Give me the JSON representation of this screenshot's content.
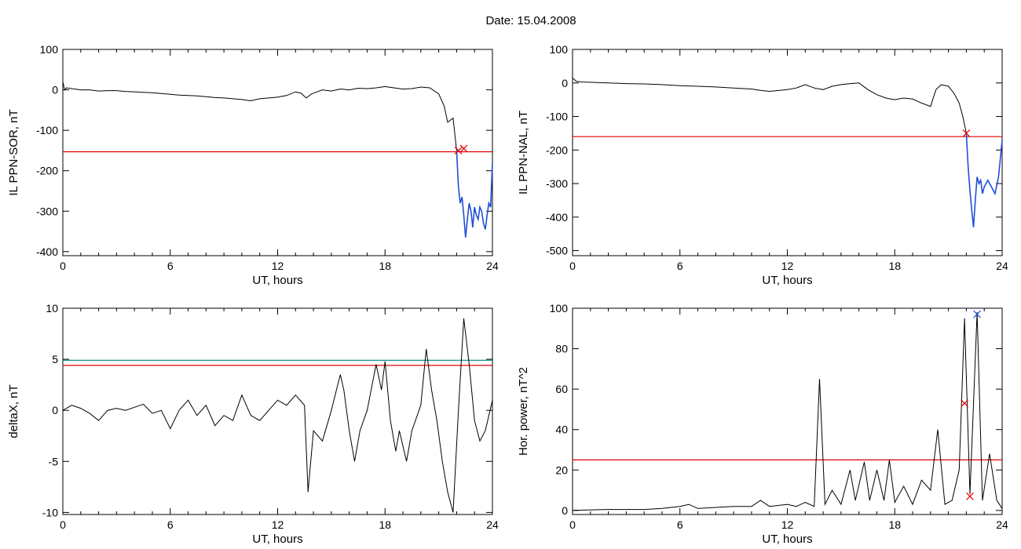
{
  "header": {
    "title": "Date:  15.04.2008"
  },
  "chart_data": [
    {
      "id": "p1",
      "type": "line",
      "xlabel": "UT, hours",
      "ylabel": "IL PPN-SOR, nT",
      "xlim": [
        0,
        24
      ],
      "ylim": [
        -410,
        100
      ],
      "xticks": [
        0,
        6,
        12,
        18,
        24
      ],
      "yticks": [
        100,
        0,
        -100,
        -200,
        -300,
        -400
      ],
      "threshold": {
        "value": -153,
        "color": "#e00000"
      },
      "series": [
        {
          "color": "#000000",
          "points": [
            [
              0,
              20
            ],
            [
              0.1,
              0
            ],
            [
              0.2,
              5
            ],
            [
              0.5,
              3
            ],
            [
              1,
              0
            ],
            [
              1.5,
              0
            ],
            [
              2,
              -3
            ],
            [
              2.5,
              -2
            ],
            [
              3,
              -2
            ],
            [
              3.5,
              -4
            ],
            [
              4,
              -5
            ],
            [
              4.5,
              -6
            ],
            [
              5,
              -7
            ],
            [
              5.5,
              -9
            ],
            [
              6,
              -11
            ],
            [
              6.5,
              -13
            ],
            [
              7,
              -14
            ],
            [
              7.5,
              -15
            ],
            [
              8,
              -17
            ],
            [
              8.5,
              -19
            ],
            [
              9,
              -20
            ],
            [
              9.5,
              -22
            ],
            [
              10,
              -24
            ],
            [
              10.5,
              -27
            ],
            [
              11,
              -22
            ],
            [
              11.5,
              -20
            ],
            [
              12,
              -18
            ],
            [
              12.5,
              -14
            ],
            [
              13,
              -5
            ],
            [
              13.3,
              -8
            ],
            [
              13.6,
              -20
            ],
            [
              13.9,
              -10
            ],
            [
              14.5,
              0
            ],
            [
              15,
              -3
            ],
            [
              15.5,
              2
            ],
            [
              16,
              0
            ],
            [
              16.5,
              4
            ],
            [
              17,
              3
            ],
            [
              17.5,
              5
            ],
            [
              18,
              8
            ],
            [
              18.5,
              5
            ],
            [
              19,
              2
            ],
            [
              19.5,
              3
            ],
            [
              20,
              7
            ],
            [
              20.5,
              5
            ],
            [
              21,
              -10
            ],
            [
              21.3,
              -40
            ],
            [
              21.5,
              -80
            ],
            [
              21.8,
              -70
            ],
            [
              22,
              -150
            ]
          ]
        },
        {
          "color": "#1f4fd6",
          "points": [
            [
              22,
              -150
            ],
            [
              22.1,
              -240
            ],
            [
              22.2,
              -280
            ],
            [
              22.3,
              -265
            ],
            [
              22.4,
              -310
            ],
            [
              22.5,
              -365
            ],
            [
              22.6,
              -320
            ],
            [
              22.7,
              -280
            ],
            [
              22.8,
              -300
            ],
            [
              22.9,
              -340
            ],
            [
              23,
              -290
            ],
            [
              23.1,
              -310
            ],
            [
              23.2,
              -320
            ],
            [
              23.3,
              -290
            ],
            [
              23.4,
              -300
            ],
            [
              23.5,
              -330
            ],
            [
              23.6,
              -345
            ],
            [
              23.7,
              -310
            ],
            [
              23.8,
              -280
            ],
            [
              23.9,
              -290
            ],
            [
              24,
              -180
            ]
          ]
        }
      ],
      "markers": [
        {
          "x": 22.1,
          "y": -150,
          "color": "#e00000"
        },
        {
          "x": 22.4,
          "y": -145,
          "color": "#e00000"
        }
      ]
    },
    {
      "id": "p2",
      "type": "line",
      "xlabel": "UT, hours",
      "ylabel": "IL PPN-NAL, nT",
      "xlim": [
        0,
        24
      ],
      "ylim": [
        -515,
        100
      ],
      "xticks": [
        0,
        6,
        12,
        18,
        24
      ],
      "yticks": [
        100,
        0,
        -100,
        -200,
        -300,
        -400,
        -500
      ],
      "threshold": {
        "value": -160,
        "color": "#e00000"
      },
      "series": [
        {
          "color": "#000000",
          "points": [
            [
              0,
              15
            ],
            [
              0.2,
              5
            ],
            [
              0.5,
              3
            ],
            [
              1,
              2
            ],
            [
              2,
              0
            ],
            [
              3,
              -2
            ],
            [
              4,
              -3
            ],
            [
              5,
              -5
            ],
            [
              6,
              -8
            ],
            [
              7,
              -10
            ],
            [
              8,
              -12
            ],
            [
              9,
              -15
            ],
            [
              10,
              -18
            ],
            [
              10.5,
              -22
            ],
            [
              11,
              -25
            ],
            [
              12,
              -20
            ],
            [
              12.5,
              -15
            ],
            [
              13,
              -5
            ],
            [
              13.5,
              -15
            ],
            [
              14,
              -20
            ],
            [
              14.5,
              -10
            ],
            [
              15,
              -5
            ],
            [
              15.5,
              -2
            ],
            [
              16,
              0
            ],
            [
              16.5,
              -20
            ],
            [
              17,
              -35
            ],
            [
              17.5,
              -45
            ],
            [
              18,
              -50
            ],
            [
              18.5,
              -45
            ],
            [
              19,
              -48
            ],
            [
              19.5,
              -60
            ],
            [
              20,
              -70
            ],
            [
              20.3,
              -20
            ],
            [
              20.6,
              -5
            ],
            [
              21,
              -10
            ],
            [
              21.3,
              -30
            ],
            [
              21.6,
              -60
            ],
            [
              21.8,
              -100
            ],
            [
              22,
              -150
            ]
          ]
        },
        {
          "color": "#1f4fd6",
          "points": [
            [
              22,
              -150
            ],
            [
              22.1,
              -250
            ],
            [
              22.2,
              -320
            ],
            [
              22.3,
              -380
            ],
            [
              22.4,
              -430
            ],
            [
              22.5,
              -350
            ],
            [
              22.6,
              -280
            ],
            [
              22.7,
              -300
            ],
            [
              22.8,
              -290
            ],
            [
              22.9,
              -330
            ],
            [
              23,
              -310
            ],
            [
              23.2,
              -290
            ],
            [
              23.4,
              -310
            ],
            [
              23.6,
              -330
            ],
            [
              23.8,
              -280
            ],
            [
              24,
              -170
            ]
          ]
        }
      ],
      "markers": [
        {
          "x": 22,
          "y": -150,
          "color": "#e00000"
        }
      ]
    },
    {
      "id": "p3",
      "type": "line",
      "xlabel": "UT, hours",
      "ylabel": "deltaX, nT",
      "xlim": [
        0,
        24
      ],
      "ylim": [
        -10.2,
        10
      ],
      "xticks": [
        0,
        6,
        12,
        18,
        24
      ],
      "yticks": [
        10,
        5,
        0,
        -5,
        -10
      ],
      "threshold": {
        "value": 4.4,
        "color": "#e00000"
      },
      "threshold2": {
        "value": 4.9,
        "color": "#1a8f8f"
      },
      "series": [
        {
          "color": "#000000",
          "points": [
            [
              0,
              0
            ],
            [
              0.5,
              0.5
            ],
            [
              1,
              0.2
            ],
            [
              1.5,
              -0.3
            ],
            [
              2,
              -1
            ],
            [
              2.5,
              0
            ],
            [
              3,
              0.2
            ],
            [
              3.5,
              0
            ],
            [
              4,
              0.3
            ],
            [
              4.5,
              0.6
            ],
            [
              5,
              -0.3
            ],
            [
              5.5,
              0
            ],
            [
              6,
              -1.8
            ],
            [
              6.5,
              0
            ],
            [
              7,
              1
            ],
            [
              7.5,
              -0.5
            ],
            [
              8,
              0.5
            ],
            [
              8.5,
              -1.5
            ],
            [
              9,
              -0.5
            ],
            [
              9.5,
              -1
            ],
            [
              10,
              1.5
            ],
            [
              10.5,
              -0.5
            ],
            [
              11,
              -1
            ],
            [
              11.5,
              0
            ],
            [
              12,
              1
            ],
            [
              12.5,
              0.5
            ],
            [
              13,
              1.5
            ],
            [
              13.5,
              0.5
            ],
            [
              13.7,
              -8
            ],
            [
              14,
              -2
            ],
            [
              14.5,
              -3
            ],
            [
              15,
              0
            ],
            [
              15.5,
              3.5
            ],
            [
              15.7,
              2
            ],
            [
              16,
              -2
            ],
            [
              16.3,
              -5
            ],
            [
              16.6,
              -2
            ],
            [
              17,
              0
            ],
            [
              17.5,
              4.5
            ],
            [
              17.8,
              2
            ],
            [
              18,
              4.8
            ],
            [
              18.3,
              -1
            ],
            [
              18.6,
              -4
            ],
            [
              18.8,
              -2
            ],
            [
              19.2,
              -5
            ],
            [
              19.5,
              -2
            ],
            [
              20,
              0.5
            ],
            [
              20.3,
              6
            ],
            [
              20.6,
              2
            ],
            [
              20.9,
              -1
            ],
            [
              21.2,
              -5
            ],
            [
              21.5,
              -8
            ],
            [
              21.8,
              -10
            ],
            [
              22.1,
              0
            ],
            [
              22.4,
              9
            ],
            [
              22.7,
              4.5
            ],
            [
              23,
              -1
            ],
            [
              23.3,
              -3
            ],
            [
              23.6,
              -2
            ],
            [
              24,
              1
            ]
          ]
        }
      ],
      "markers": []
    },
    {
      "id": "p4",
      "type": "line",
      "xlabel": "UT, hours",
      "ylabel": "Hor. power, nT^2",
      "xlim": [
        0,
        24
      ],
      "ylim": [
        -2,
        100
      ],
      "xticks": [
        0,
        6,
        12,
        18,
        24
      ],
      "yticks": [
        100,
        80,
        60,
        40,
        20,
        0
      ],
      "threshold": {
        "value": 25,
        "color": "#e00000"
      },
      "series": [
        {
          "color": "#000000",
          "points": [
            [
              0,
              0
            ],
            [
              2,
              0.5
            ],
            [
              4,
              0.5
            ],
            [
              5,
              1
            ],
            [
              6,
              2
            ],
            [
              6.5,
              3
            ],
            [
              7,
              1
            ],
            [
              8,
              1.5
            ],
            [
              9,
              2
            ],
            [
              10,
              2
            ],
            [
              10.5,
              5
            ],
            [
              11,
              2
            ],
            [
              12,
              3
            ],
            [
              12.5,
              2
            ],
            [
              13,
              4
            ],
            [
              13.5,
              2
            ],
            [
              13.8,
              65
            ],
            [
              14.1,
              3
            ],
            [
              14.5,
              10
            ],
            [
              15,
              3
            ],
            [
              15.5,
              20
            ],
            [
              15.8,
              5
            ],
            [
              16.3,
              24
            ],
            [
              16.6,
              5
            ],
            [
              17,
              20
            ],
            [
              17.4,
              5
            ],
            [
              17.7,
              25
            ],
            [
              18,
              4
            ],
            [
              18.5,
              12
            ],
            [
              19,
              3
            ],
            [
              19.5,
              15
            ],
            [
              20,
              10
            ],
            [
              20.4,
              40
            ],
            [
              20.8,
              3
            ],
            [
              21.2,
              5
            ],
            [
              21.6,
              20
            ],
            [
              21.9,
              95
            ],
            [
              22.2,
              8
            ],
            [
              22.6,
              98
            ],
            [
              22.9,
              5
            ],
            [
              23.3,
              28
            ],
            [
              23.7,
              5
            ],
            [
              24,
              1
            ]
          ]
        }
      ],
      "markers": [
        {
          "x": 21.9,
          "y": 53,
          "color": "#e00000"
        },
        {
          "x": 22.2,
          "y": 7,
          "color": "#e00000"
        },
        {
          "x": 22.6,
          "y": 97,
          "color": "#1f4fd6"
        }
      ]
    }
  ]
}
